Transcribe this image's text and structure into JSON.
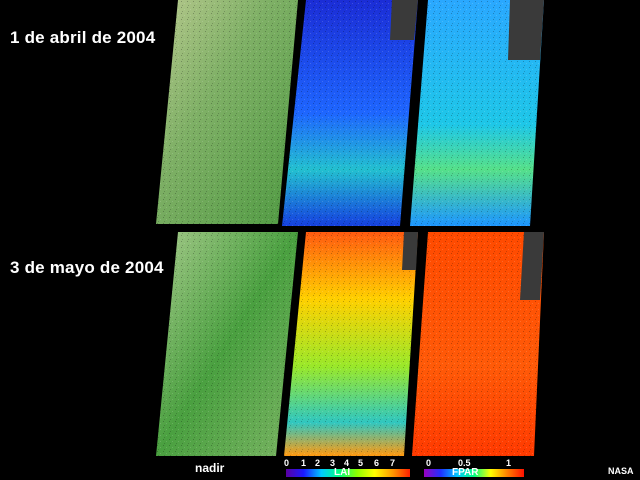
{
  "dates": {
    "first": "1 de abril de 2004",
    "second": "3 de mayo de 2004"
  },
  "labels": {
    "nadir": "nadir",
    "lai": "LAI",
    "fpar": "FPAR",
    "credit": "NASA"
  },
  "lai_scale": [
    "0",
    "1",
    "2",
    "3",
    "4",
    "5",
    "6",
    "7"
  ],
  "fpar_scale": [
    "0",
    "0.5",
    "1"
  ],
  "colors": {
    "background": "#000000",
    "nadir_green": "#6fae55",
    "lai_low": "#1a3cff",
    "lai_high": "#ff3000",
    "no_data": "#3a3a3a"
  }
}
